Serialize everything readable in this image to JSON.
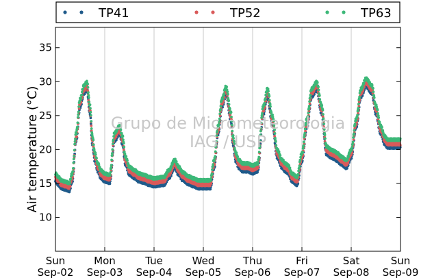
{
  "chart_data": {
    "type": "scatter",
    "ylabel": "Air temperature (°C)",
    "xlabel": "",
    "title": "",
    "watermark": [
      "Grupo de Micrometeorologia",
      "IAG / USP"
    ],
    "ylim": [
      5,
      38
    ],
    "yticks": [
      10,
      15,
      20,
      25,
      30,
      35
    ],
    "xlim_days": [
      0,
      7
    ],
    "grid": "vertical-at-day-boundaries",
    "legend_placement": "top-outside",
    "xticks": [
      {
        "day": "Sun",
        "date": "Sep-02"
      },
      {
        "day": "Mon",
        "date": "Sep-03"
      },
      {
        "day": "Tue",
        "date": "Sep-04"
      },
      {
        "day": "Wed",
        "date": "Sep-05"
      },
      {
        "day": "Thu",
        "date": "Sep-06"
      },
      {
        "day": "Fri",
        "date": "Sep-07"
      },
      {
        "day": "Sat",
        "date": "Sep-08"
      },
      {
        "day": "Sun",
        "date": "Sep-09"
      }
    ],
    "base_curve": {
      "x": [
        0.0,
        0.06,
        0.12,
        0.2,
        0.28,
        0.34,
        0.42,
        0.5,
        0.58,
        0.64,
        0.7,
        0.75,
        0.8,
        0.86,
        0.92,
        1.0,
        1.1,
        1.2,
        1.3,
        1.36,
        1.42,
        1.5,
        1.6,
        1.7,
        1.8,
        1.9,
        2.0,
        2.2,
        2.3,
        2.42,
        2.5,
        2.58,
        2.7,
        2.8,
        2.9,
        3.0,
        3.14,
        3.22,
        3.3,
        3.38,
        3.46,
        3.56,
        3.6,
        3.66,
        3.72,
        3.8,
        3.9,
        4.0,
        4.1,
        4.22,
        4.3,
        4.4,
        4.5,
        4.6,
        4.66,
        4.72,
        4.8,
        4.9,
        5.0,
        5.1,
        5.2,
        5.3,
        5.4,
        5.5,
        5.6,
        5.66,
        5.72,
        5.8,
        5.9,
        6.0,
        6.1,
        6.2,
        6.3,
        6.42,
        6.5,
        6.6,
        6.68,
        6.74,
        6.8,
        6.9,
        7.0
      ],
      "y": [
        16.0,
        15.5,
        15.0,
        14.8,
        14.6,
        16.0,
        22.0,
        27.0,
        29.0,
        29.5,
        26.0,
        21.5,
        19.0,
        17.5,
        16.5,
        16.0,
        15.8,
        22.0,
        23.0,
        21.5,
        18.5,
        17.0,
        16.5,
        16.0,
        15.8,
        15.5,
        15.3,
        15.5,
        16.5,
        18.0,
        17.0,
        16.2,
        15.6,
        15.3,
        15.0,
        15.0,
        15.0,
        18.0,
        23.0,
        27.0,
        28.8,
        25.0,
        21.5,
        19.0,
        18.0,
        17.5,
        17.5,
        17.2,
        17.5,
        26.0,
        28.5,
        24.5,
        19.5,
        18.0,
        17.5,
        17.2,
        16.0,
        15.5,
        19.0,
        24.0,
        28.5,
        29.5,
        26.0,
        20.0,
        19.5,
        19.3,
        19.0,
        18.5,
        18.0,
        19.5,
        24.0,
        28.5,
        30.0,
        29.0,
        26.0,
        23.0,
        21.5,
        21.0,
        21.0,
        21.0,
        21.0
      ]
    },
    "series": [
      {
        "name": "TP41",
        "color": "#1f5a8a",
        "offset": -0.7
      },
      {
        "name": "TP52",
        "color": "#d95a5a",
        "offset": -0.2
      },
      {
        "name": "TP63",
        "color": "#3cb878",
        "offset": 0.45
      }
    ]
  }
}
